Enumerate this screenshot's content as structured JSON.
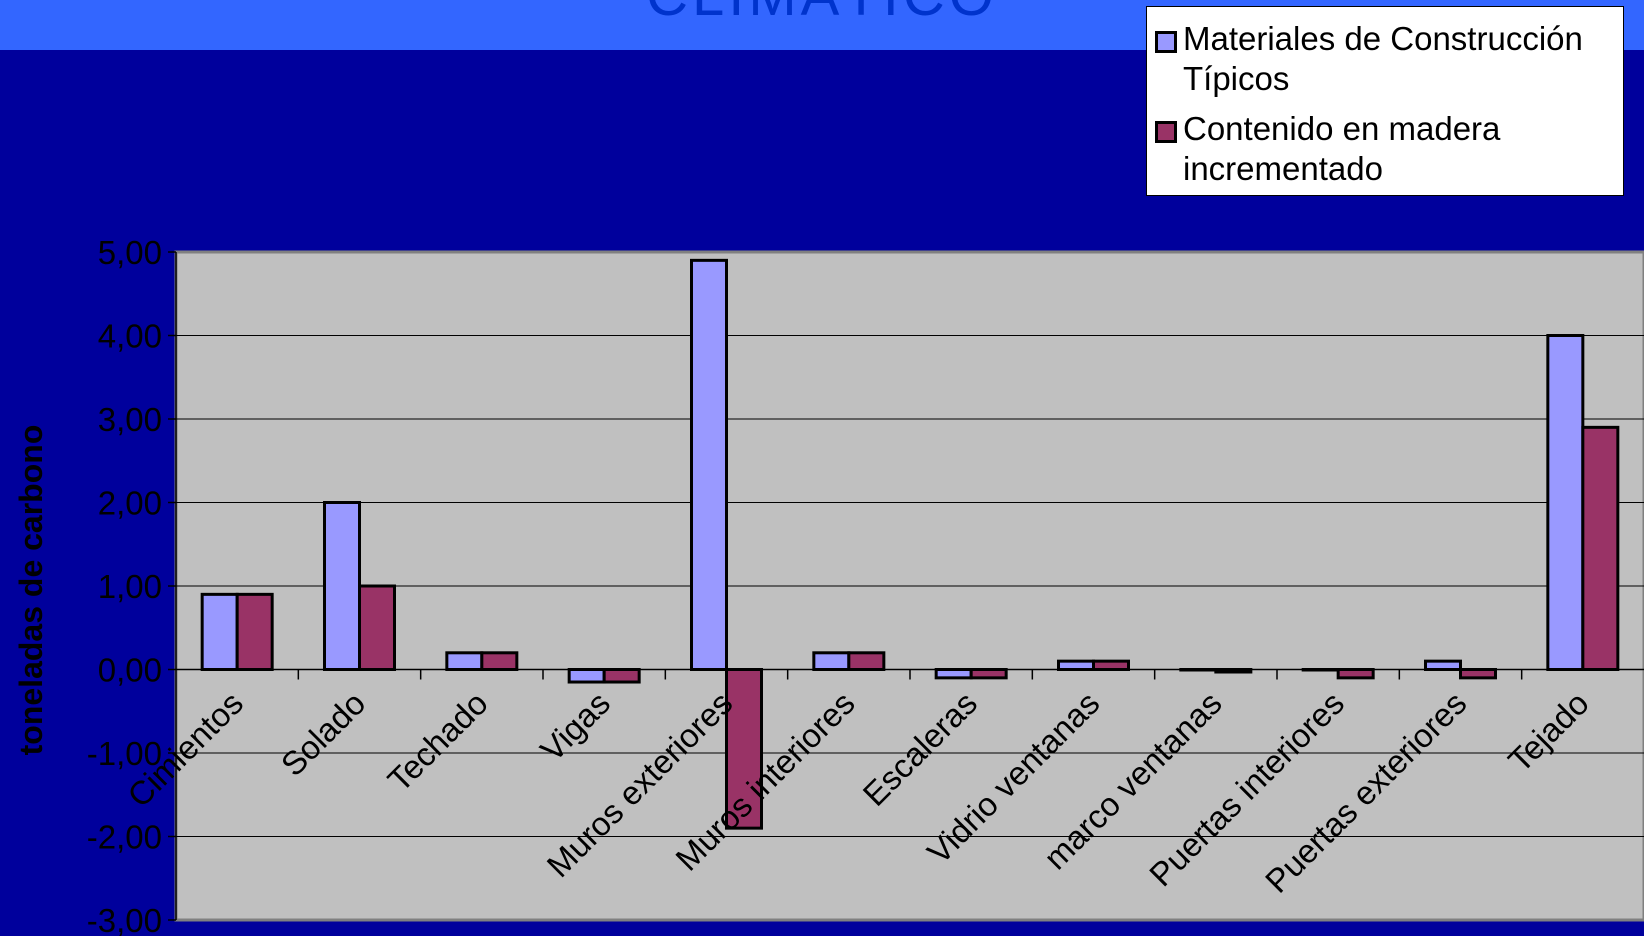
{
  "slide": {
    "title": "CLIMÁTICO"
  },
  "chart_data": {
    "type": "bar",
    "title": "",
    "xlabel": "",
    "ylabel": "toneladas de carbono",
    "ylim": [
      -3,
      5
    ],
    "yticks": [
      "5,00",
      "4,00",
      "3,00",
      "2,00",
      "1,00",
      "0,00",
      "-1,00",
      "-2,00",
      "-3,00"
    ],
    "grid": true,
    "legend_position": "top-right",
    "categories": [
      "Cimientos",
      "Solado",
      "Techado",
      "Vigas",
      "Muros exteriores",
      "Muros interiores",
      "Escaleras",
      "Vidrio ventanas",
      "marco ventanas",
      "Puertas interiores",
      "Puertas exteriores",
      "Tejado"
    ],
    "series": [
      {
        "name": "Materiales de Construcción Típicos",
        "color": "#9999ff",
        "values": [
          0.9,
          2.0,
          0.2,
          -0.15,
          4.9,
          0.2,
          -0.1,
          0.1,
          0.0,
          0.0,
          0.1,
          4.0
        ]
      },
      {
        "name": "Contenido en madera incrementado",
        "color": "#993366",
        "values": [
          0.9,
          1.0,
          0.2,
          -0.15,
          -1.9,
          0.2,
          -0.1,
          0.1,
          -0.03,
          -0.1,
          -0.1,
          2.9
        ]
      }
    ],
    "plot_background": "#c0c0c0"
  }
}
